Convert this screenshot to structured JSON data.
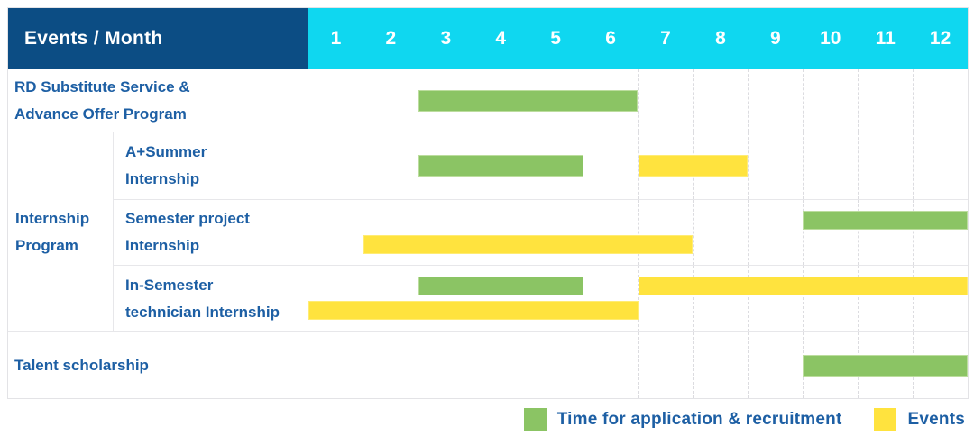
{
  "header": {
    "corner_label": "Events / Month",
    "months": [
      "1",
      "2",
      "3",
      "4",
      "5",
      "6",
      "7",
      "8",
      "9",
      "10",
      "11",
      "12"
    ]
  },
  "colors": {
    "header_bg": "#0C4D84",
    "month_header_bg": "#0FD7F0",
    "label_text": "#1D5FA4",
    "recruitment_green": "#8BC464",
    "events_yellow": "#FFE33E",
    "grid_line": "#E7E7EA"
  },
  "chart_data": {
    "type": "bar",
    "subtype": "gantt",
    "x_unit": "month",
    "x_range": [
      1,
      12
    ],
    "categories": [
      "1",
      "2",
      "3",
      "4",
      "5",
      "6",
      "7",
      "8",
      "9",
      "10",
      "11",
      "12"
    ],
    "group_label": "Internship Program",
    "group_label_display": "Internship\nProgram",
    "rows": [
      {
        "id": "rd-substitute-advance-offer",
        "group": null,
        "label": "RD Substitute Service & Advance Offer Program",
        "label_display": "RD Substitute Service &\nAdvance Offer Program",
        "bars": [
          {
            "kind": "application_recruitment",
            "start_month": 3,
            "end_month": 6,
            "lane": "center"
          }
        ]
      },
      {
        "id": "a-plus-summer-internship",
        "group": "Internship Program",
        "label": "A+Summer Internship",
        "label_display": "A+Summer\nInternship",
        "bars": [
          {
            "kind": "application_recruitment",
            "start_month": 3,
            "end_month": 5,
            "lane": "center"
          },
          {
            "kind": "events",
            "start_month": 7,
            "end_month": 8,
            "lane": "center"
          }
        ]
      },
      {
        "id": "semester-project-internship",
        "group": "Internship Program",
        "label": "Semester project Internship",
        "label_display": "Semester project\nInternship",
        "bars": [
          {
            "kind": "application_recruitment",
            "start_month": 10,
            "end_month": 12,
            "lane": "top"
          },
          {
            "kind": "events",
            "start_month": 2,
            "end_month": 7,
            "lane": "bottom"
          }
        ]
      },
      {
        "id": "in-semester-technician-internship",
        "group": "Internship Program",
        "label": "In-Semester technician Internship",
        "label_display": "In-Semester\ntechnician Internship",
        "bars": [
          {
            "kind": "application_recruitment",
            "start_month": 3,
            "end_month": 5,
            "lane": "top"
          },
          {
            "kind": "events",
            "start_month": 7,
            "end_month": 12,
            "lane": "top"
          },
          {
            "kind": "events",
            "start_month": 1,
            "end_month": 6,
            "lane": "bottom"
          }
        ]
      },
      {
        "id": "talent-scholarship",
        "group": null,
        "label": "Talent scholarship",
        "label_display": "Talent scholarship",
        "bars": [
          {
            "kind": "application_recruitment",
            "start_month": 10,
            "end_month": 12,
            "lane": "center"
          }
        ]
      }
    ],
    "legend_position": "bottom-right"
  },
  "legend": {
    "items": [
      {
        "swatch": "recruitment_green",
        "label": "Time for application & recruitment"
      },
      {
        "swatch": "events_yellow",
        "label": "Events"
      }
    ]
  }
}
